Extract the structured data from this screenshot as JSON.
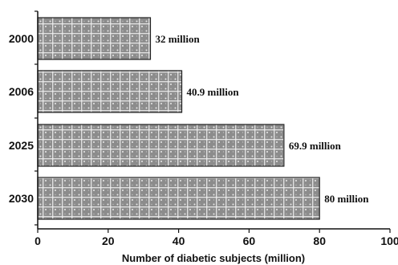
{
  "chart_data": {
    "type": "bar",
    "orientation": "horizontal",
    "categories": [
      "2000",
      "2006",
      "2025",
      "2030"
    ],
    "values": [
      32,
      40.9,
      69.9,
      80
    ],
    "data_labels": [
      "32 million",
      "40.9 million",
      "69.9 million",
      "80 million"
    ],
    "xlabel": "Number of diabetic subjects (million)",
    "ylabel": "",
    "xlim": [
      0,
      100
    ],
    "xticks": [
      0,
      20,
      40,
      60,
      80,
      100
    ],
    "grid": false,
    "bar_fill": "patterned gray",
    "colors": {
      "bar": "#8c8c8c",
      "bar_pattern": "#eeeeee",
      "bar_border": "#222222",
      "axis": "#111111",
      "text": "#111111"
    }
  }
}
